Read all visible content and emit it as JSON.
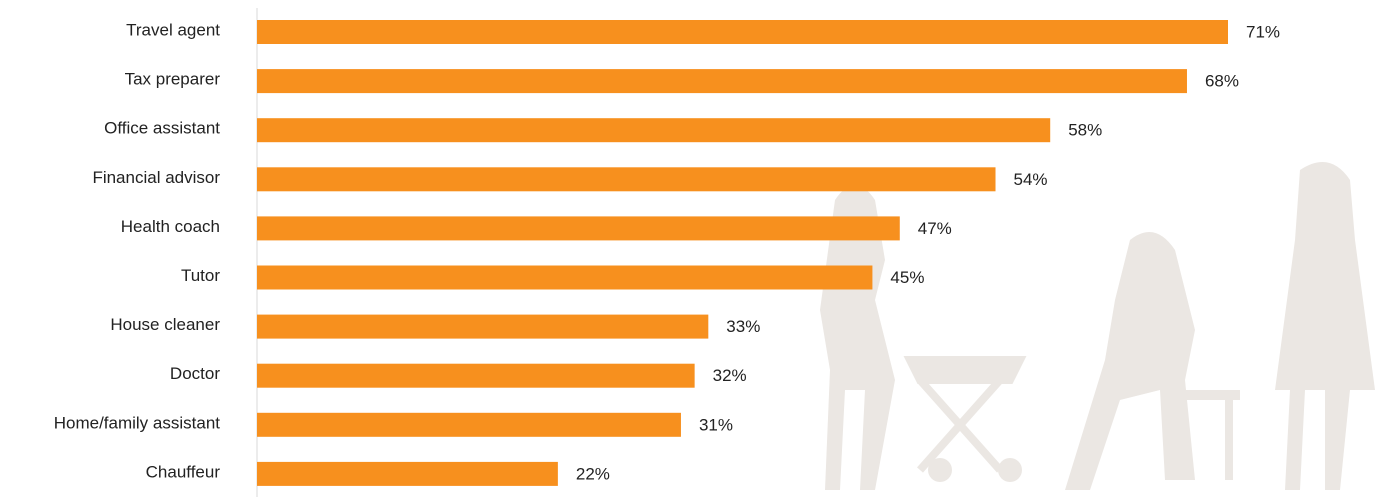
{
  "chart_data": {
    "type": "bar",
    "orientation": "horizontal",
    "categories": [
      "Travel agent",
      "Tax preparer",
      "Office assistant",
      "Financial advisor",
      "Health coach",
      "Tutor",
      "House cleaner",
      "Doctor",
      "Home/family assistant",
      "Chauffeur"
    ],
    "values": [
      71,
      68,
      58,
      54,
      47,
      45,
      33,
      32,
      31,
      22
    ],
    "value_labels": [
      "71%",
      "68%",
      "58%",
      "54%",
      "47%",
      "45%",
      "33%",
      "32%",
      "31%",
      "22%"
    ],
    "color": "#f7901e"
  }
}
